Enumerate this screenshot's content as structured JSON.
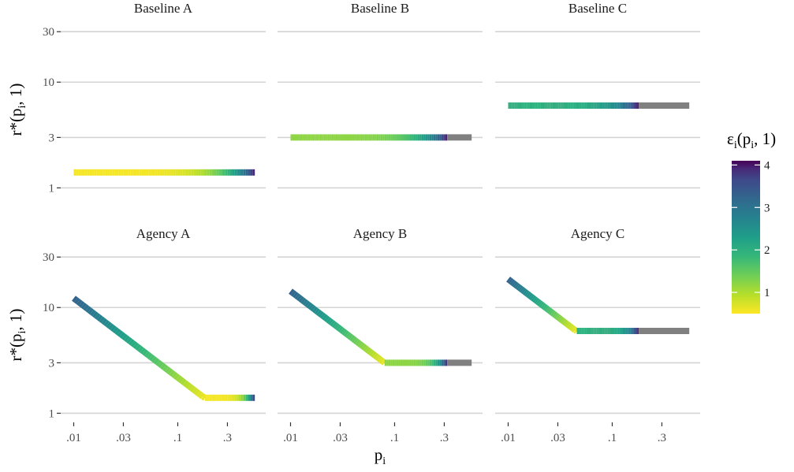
{
  "chart_data": {
    "type": "line",
    "facet_layout": "2 rows x 3 columns",
    "xlabel": "p",
    "xlabel_sub": "i",
    "x_scale": "log",
    "x_ticks": [
      0.01,
      0.03,
      0.1,
      0.3
    ],
    "x_tick_labels": [
      ".01",
      ".03",
      ".1",
      ".3"
    ],
    "xlim": [
      0.0075,
      0.7
    ],
    "ylabel": "r*(p",
    "ylabel_sub": "i",
    "ylabel_tail": ", 1)",
    "y_scale": "log",
    "y_ticks": [
      1,
      3,
      10,
      30
    ],
    "y_tick_labels": [
      "1",
      "3",
      "10",
      "30"
    ],
    "ylim": [
      0.82,
      37
    ],
    "grid": "horizontal major lines",
    "color_scale": "viridis (reversed)",
    "censored_color": "#808080",
    "legend": {
      "title": "ε",
      "title_sub": "i",
      "title_tail": "(p",
      "title_sub2": "i",
      "title_end": ", 1)",
      "placement": "right",
      "ticks": [
        1,
        2,
        3,
        4
      ],
      "tick_labels": [
        "1",
        "2",
        "3",
        "4"
      ],
      "range": [
        0.5,
        4.1
      ]
    },
    "facets": [
      {
        "title": "Baseline A",
        "row": 0,
        "col": 0,
        "knee_x": null,
        "flat_y": 1.4,
        "end_x": 0.55,
        "censor_x": null,
        "slope": -0.75
      },
      {
        "title": "Baseline B",
        "row": 0,
        "col": 1,
        "knee_x": null,
        "flat_y": 3.0,
        "end_x": 0.32,
        "censor_x": 0.55,
        "slope": -0.75
      },
      {
        "title": "Baseline C",
        "row": 0,
        "col": 2,
        "knee_x": null,
        "flat_y": 6.0,
        "end_x": 0.18,
        "censor_x": 0.55,
        "slope": -0.75
      },
      {
        "title": "Agency A",
        "row": 1,
        "col": 0,
        "knee_x": 0.18,
        "flat_y": 1.4,
        "end_x": 0.55,
        "censor_x": null,
        "slope": -0.75
      },
      {
        "title": "Agency B",
        "row": 1,
        "col": 1,
        "knee_x": 0.08,
        "flat_y": 3.0,
        "end_x": 0.32,
        "censor_x": 0.55,
        "slope": -0.75
      },
      {
        "title": "Agency C",
        "row": 1,
        "col": 2,
        "knee_x": 0.045,
        "flat_y": 6.0,
        "end_x": 0.18,
        "censor_x": 0.55,
        "slope": -0.75
      }
    ]
  }
}
